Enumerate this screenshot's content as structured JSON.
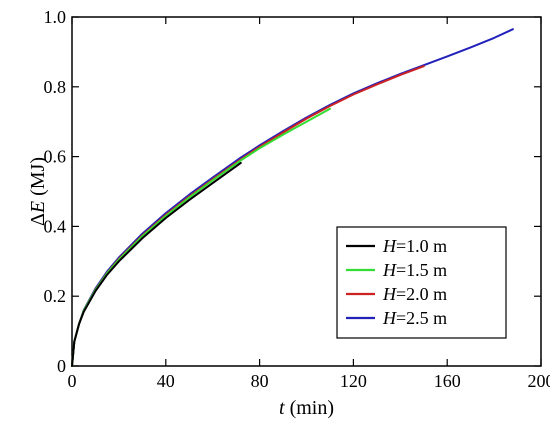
{
  "chart_data": {
    "type": "line",
    "title": "",
    "xlabel_italic": "t",
    "xlabel_rest": " (min)",
    "ylabel_delta": "Δ",
    "ylabel_italic": "E",
    "ylabel_rest": " (MJ)",
    "xlim": [
      0,
      200
    ],
    "ylim": [
      0,
      1.0
    ],
    "xticks": [
      0,
      40,
      80,
      120,
      160,
      200
    ],
    "yticks": [
      0,
      0.2,
      0.4,
      0.6,
      0.8,
      1.0
    ],
    "xtick_labels": [
      "0",
      "40",
      "80",
      "120",
      "160",
      "200"
    ],
    "ytick_labels": [
      "0",
      "0.2",
      "0.4",
      "0.6",
      "0.8",
      "1.0"
    ],
    "grid": false,
    "legend_position": "bottom-right",
    "series": [
      {
        "name_italic": "H",
        "name_rest": "=1.0 m",
        "color": "#000000",
        "x": [
          0,
          1,
          3,
          5,
          10,
          15,
          20,
          30,
          40,
          50,
          60,
          72
        ],
        "y": [
          0,
          0.07,
          0.12,
          0.155,
          0.215,
          0.262,
          0.3,
          0.366,
          0.424,
          0.476,
          0.524,
          0.582
        ]
      },
      {
        "name_italic": "H",
        "name_rest": "=1.5 m",
        "color": "#33dd33",
        "x": [
          0,
          1,
          3,
          5,
          10,
          15,
          20,
          30,
          40,
          50,
          60,
          72,
          80,
          90,
          100,
          110
        ],
        "y": [
          0,
          0.07,
          0.12,
          0.158,
          0.218,
          0.266,
          0.305,
          0.372,
          0.43,
          0.483,
          0.532,
          0.589,
          0.624,
          0.663,
          0.7,
          0.737
        ]
      },
      {
        "name_italic": "H",
        "name_rest": "=2.0 m",
        "color": "#cc2222",
        "x": [
          0,
          1,
          3,
          5,
          10,
          15,
          20,
          30,
          40,
          50,
          60,
          72,
          80,
          90,
          100,
          110,
          120,
          130,
          140,
          150
        ],
        "y": [
          0,
          0.07,
          0.12,
          0.158,
          0.219,
          0.267,
          0.307,
          0.374,
          0.433,
          0.486,
          0.535,
          0.592,
          0.628,
          0.669,
          0.709,
          0.745,
          0.778,
          0.807,
          0.834,
          0.859
        ]
      },
      {
        "name_italic": "H",
        "name_rest": "=2.5 m",
        "color": "#2222bb",
        "x": [
          0,
          1,
          3,
          5,
          10,
          15,
          20,
          30,
          40,
          50,
          60,
          72,
          80,
          90,
          100,
          110,
          120,
          130,
          140,
          150,
          160,
          170,
          180,
          188
        ],
        "y": [
          0,
          0.07,
          0.12,
          0.16,
          0.222,
          0.271,
          0.311,
          0.379,
          0.438,
          0.491,
          0.54,
          0.597,
          0.632,
          0.673,
          0.712,
          0.748,
          0.781,
          0.81,
          0.837,
          0.862,
          0.887,
          0.913,
          0.94,
          0.965
        ]
      }
    ]
  }
}
